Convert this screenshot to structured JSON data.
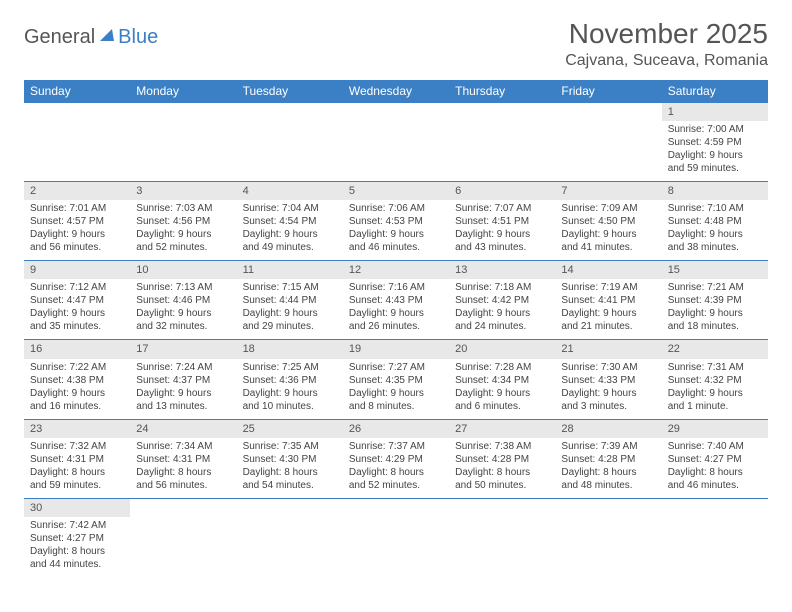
{
  "logo": {
    "general": "General",
    "blue": "Blue"
  },
  "title": "November 2025",
  "location": "Cajvana, Suceava, Romania",
  "colors": {
    "header_bg": "#3b7fc4",
    "header_text": "#ffffff",
    "daynum_bg": "#e8e8e8",
    "rule": "#3b7fc4",
    "text": "#444444"
  },
  "weekdays": [
    "Sunday",
    "Monday",
    "Tuesday",
    "Wednesday",
    "Thursday",
    "Friday",
    "Saturday"
  ],
  "weeks": [
    [
      null,
      null,
      null,
      null,
      null,
      null,
      {
        "n": "1",
        "sr": "Sunrise: 7:00 AM",
        "ss": "Sunset: 4:59 PM",
        "d1": "Daylight: 9 hours",
        "d2": "and 59 minutes."
      }
    ],
    [
      {
        "n": "2",
        "sr": "Sunrise: 7:01 AM",
        "ss": "Sunset: 4:57 PM",
        "d1": "Daylight: 9 hours",
        "d2": "and 56 minutes."
      },
      {
        "n": "3",
        "sr": "Sunrise: 7:03 AM",
        "ss": "Sunset: 4:56 PM",
        "d1": "Daylight: 9 hours",
        "d2": "and 52 minutes."
      },
      {
        "n": "4",
        "sr": "Sunrise: 7:04 AM",
        "ss": "Sunset: 4:54 PM",
        "d1": "Daylight: 9 hours",
        "d2": "and 49 minutes."
      },
      {
        "n": "5",
        "sr": "Sunrise: 7:06 AM",
        "ss": "Sunset: 4:53 PM",
        "d1": "Daylight: 9 hours",
        "d2": "and 46 minutes."
      },
      {
        "n": "6",
        "sr": "Sunrise: 7:07 AM",
        "ss": "Sunset: 4:51 PM",
        "d1": "Daylight: 9 hours",
        "d2": "and 43 minutes."
      },
      {
        "n": "7",
        "sr": "Sunrise: 7:09 AM",
        "ss": "Sunset: 4:50 PM",
        "d1": "Daylight: 9 hours",
        "d2": "and 41 minutes."
      },
      {
        "n": "8",
        "sr": "Sunrise: 7:10 AM",
        "ss": "Sunset: 4:48 PM",
        "d1": "Daylight: 9 hours",
        "d2": "and 38 minutes."
      }
    ],
    [
      {
        "n": "9",
        "sr": "Sunrise: 7:12 AM",
        "ss": "Sunset: 4:47 PM",
        "d1": "Daylight: 9 hours",
        "d2": "and 35 minutes."
      },
      {
        "n": "10",
        "sr": "Sunrise: 7:13 AM",
        "ss": "Sunset: 4:46 PM",
        "d1": "Daylight: 9 hours",
        "d2": "and 32 minutes."
      },
      {
        "n": "11",
        "sr": "Sunrise: 7:15 AM",
        "ss": "Sunset: 4:44 PM",
        "d1": "Daylight: 9 hours",
        "d2": "and 29 minutes."
      },
      {
        "n": "12",
        "sr": "Sunrise: 7:16 AM",
        "ss": "Sunset: 4:43 PM",
        "d1": "Daylight: 9 hours",
        "d2": "and 26 minutes."
      },
      {
        "n": "13",
        "sr": "Sunrise: 7:18 AM",
        "ss": "Sunset: 4:42 PM",
        "d1": "Daylight: 9 hours",
        "d2": "and 24 minutes."
      },
      {
        "n": "14",
        "sr": "Sunrise: 7:19 AM",
        "ss": "Sunset: 4:41 PM",
        "d1": "Daylight: 9 hours",
        "d2": "and 21 minutes."
      },
      {
        "n": "15",
        "sr": "Sunrise: 7:21 AM",
        "ss": "Sunset: 4:39 PM",
        "d1": "Daylight: 9 hours",
        "d2": "and 18 minutes."
      }
    ],
    [
      {
        "n": "16",
        "sr": "Sunrise: 7:22 AM",
        "ss": "Sunset: 4:38 PM",
        "d1": "Daylight: 9 hours",
        "d2": "and 16 minutes."
      },
      {
        "n": "17",
        "sr": "Sunrise: 7:24 AM",
        "ss": "Sunset: 4:37 PM",
        "d1": "Daylight: 9 hours",
        "d2": "and 13 minutes."
      },
      {
        "n": "18",
        "sr": "Sunrise: 7:25 AM",
        "ss": "Sunset: 4:36 PM",
        "d1": "Daylight: 9 hours",
        "d2": "and 10 minutes."
      },
      {
        "n": "19",
        "sr": "Sunrise: 7:27 AM",
        "ss": "Sunset: 4:35 PM",
        "d1": "Daylight: 9 hours",
        "d2": "and 8 minutes."
      },
      {
        "n": "20",
        "sr": "Sunrise: 7:28 AM",
        "ss": "Sunset: 4:34 PM",
        "d1": "Daylight: 9 hours",
        "d2": "and 6 minutes."
      },
      {
        "n": "21",
        "sr": "Sunrise: 7:30 AM",
        "ss": "Sunset: 4:33 PM",
        "d1": "Daylight: 9 hours",
        "d2": "and 3 minutes."
      },
      {
        "n": "22",
        "sr": "Sunrise: 7:31 AM",
        "ss": "Sunset: 4:32 PM",
        "d1": "Daylight: 9 hours",
        "d2": "and 1 minute."
      }
    ],
    [
      {
        "n": "23",
        "sr": "Sunrise: 7:32 AM",
        "ss": "Sunset: 4:31 PM",
        "d1": "Daylight: 8 hours",
        "d2": "and 59 minutes."
      },
      {
        "n": "24",
        "sr": "Sunrise: 7:34 AM",
        "ss": "Sunset: 4:31 PM",
        "d1": "Daylight: 8 hours",
        "d2": "and 56 minutes."
      },
      {
        "n": "25",
        "sr": "Sunrise: 7:35 AM",
        "ss": "Sunset: 4:30 PM",
        "d1": "Daylight: 8 hours",
        "d2": "and 54 minutes."
      },
      {
        "n": "26",
        "sr": "Sunrise: 7:37 AM",
        "ss": "Sunset: 4:29 PM",
        "d1": "Daylight: 8 hours",
        "d2": "and 52 minutes."
      },
      {
        "n": "27",
        "sr": "Sunrise: 7:38 AM",
        "ss": "Sunset: 4:28 PM",
        "d1": "Daylight: 8 hours",
        "d2": "and 50 minutes."
      },
      {
        "n": "28",
        "sr": "Sunrise: 7:39 AM",
        "ss": "Sunset: 4:28 PM",
        "d1": "Daylight: 8 hours",
        "d2": "and 48 minutes."
      },
      {
        "n": "29",
        "sr": "Sunrise: 7:40 AM",
        "ss": "Sunset: 4:27 PM",
        "d1": "Daylight: 8 hours",
        "d2": "and 46 minutes."
      }
    ],
    [
      {
        "n": "30",
        "sr": "Sunrise: 7:42 AM",
        "ss": "Sunset: 4:27 PM",
        "d1": "Daylight: 8 hours",
        "d2": "and 44 minutes."
      },
      null,
      null,
      null,
      null,
      null,
      null
    ]
  ]
}
